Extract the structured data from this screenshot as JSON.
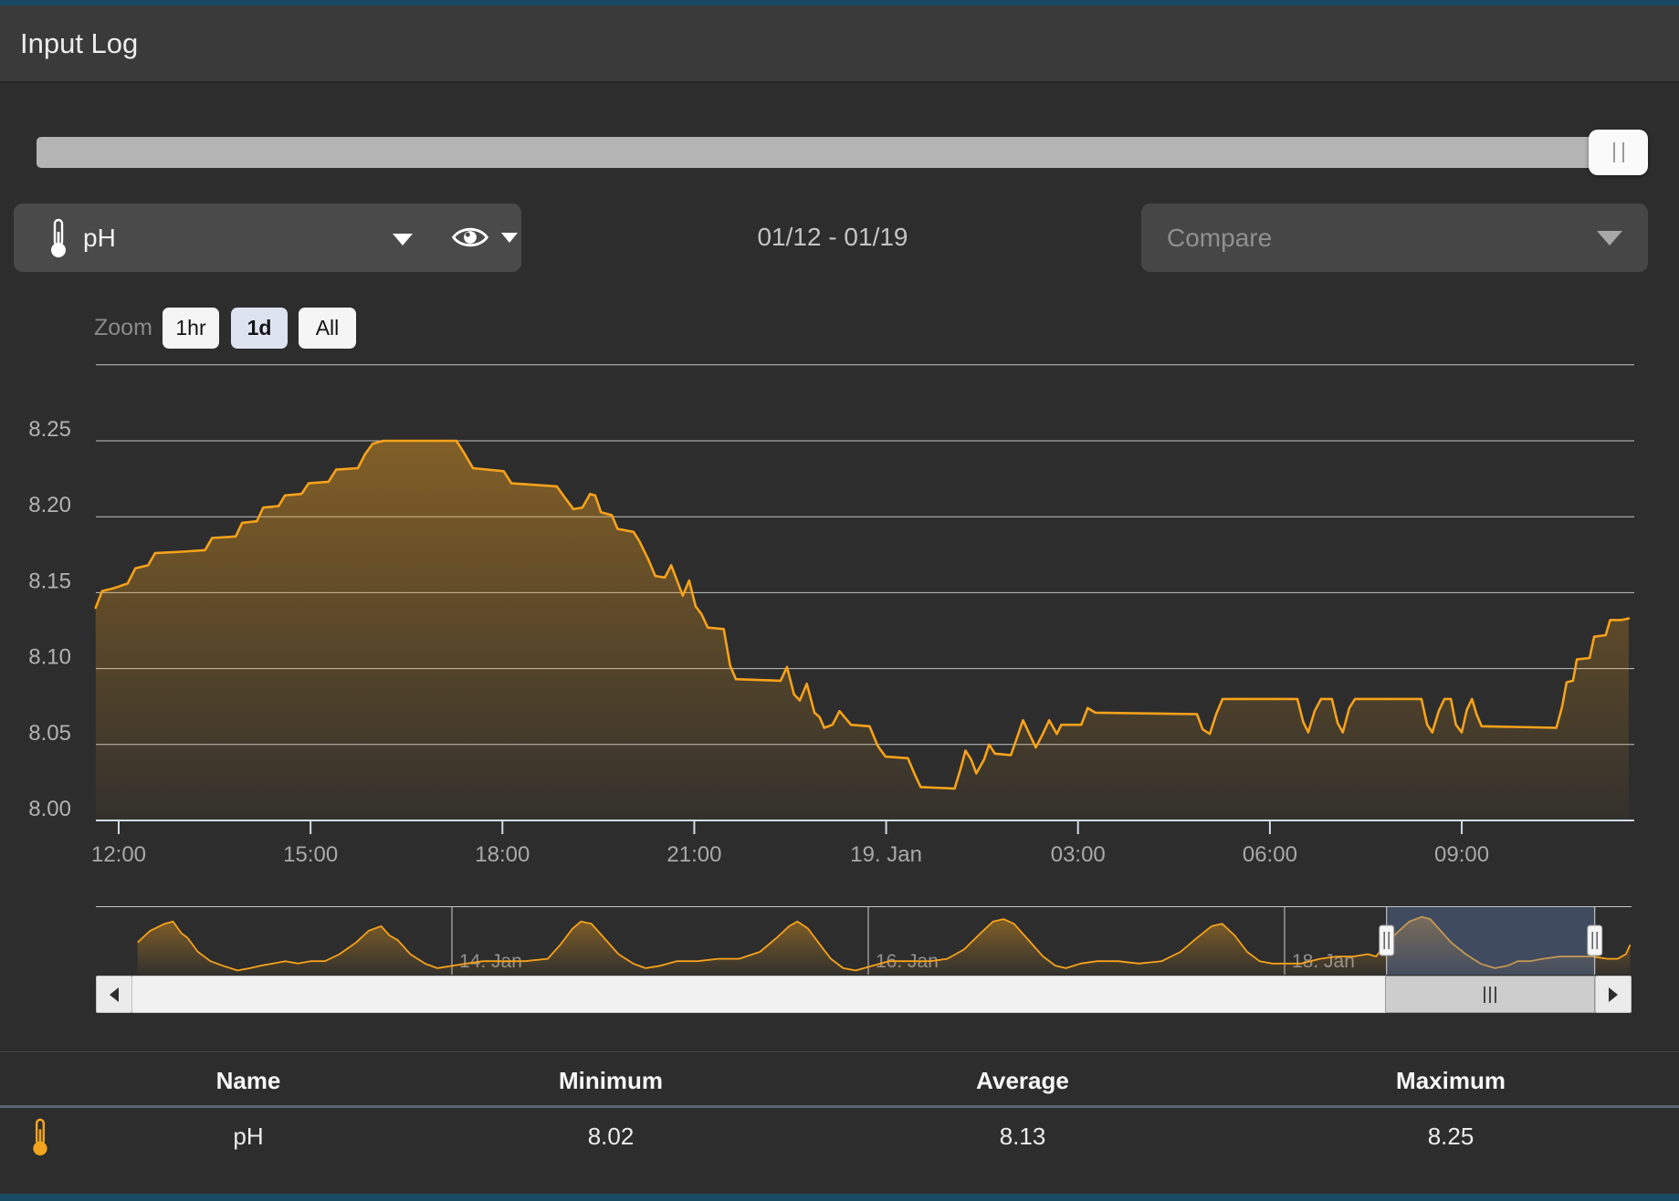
{
  "window": {
    "title": "Input Log"
  },
  "toolbar": {
    "sensor_selector": {
      "label": "pH",
      "icon": "thermometer-icon"
    },
    "date_range": "01/12 - 01/19",
    "compare": {
      "placeholder": "Compare"
    }
  },
  "zoom_controls": {
    "label": "Zoom",
    "options": [
      {
        "label": "1hr",
        "active": false
      },
      {
        "label": "1d",
        "active": true
      },
      {
        "label": "All",
        "active": false
      }
    ]
  },
  "chart_data": {
    "type": "area",
    "title": "pH input log, last 24 hours",
    "legend_position": "none",
    "grid": true,
    "colors": {
      "line": "#f7a21b",
      "fill_top": "rgba(246,163,30,0.5)",
      "fill_bottom": "rgba(246,163,30,0.03)",
      "selection": "rgba(99,132,190,0.35)",
      "axis": "#cfdce8"
    },
    "yAxis": {
      "min": 8.0,
      "max": 8.3,
      "gridlines": [
        8.0,
        8.05,
        8.1,
        8.15,
        8.2,
        8.25,
        8.3
      ],
      "labels": [
        "8.00",
        "8.05",
        "8.10",
        "8.15",
        "8.20",
        "8.25"
      ]
    },
    "xAxis": {
      "unit": "hours since 18 Jan 12:00",
      "tick_hours": [
        0,
        3,
        6,
        9,
        12,
        15,
        18,
        21
      ],
      "tick_labels": [
        "12:00",
        "15:00",
        "18:00",
        "21:00",
        "19. Jan",
        "03:00",
        "06:00",
        "09:00"
      ]
    },
    "series": [
      {
        "name": "pH",
        "x_unit": "hours since 18 Jan 12:00",
        "points": [
          [
            -0.36,
            8.14
          ],
          [
            -0.26,
            8.151
          ],
          [
            -0.07,
            8.153
          ],
          [
            0.14,
            8.156
          ],
          [
            0.26,
            8.166
          ],
          [
            0.46,
            8.168
          ],
          [
            0.57,
            8.176
          ],
          [
            1.0,
            8.177
          ],
          [
            1.35,
            8.178
          ],
          [
            1.46,
            8.186
          ],
          [
            1.83,
            8.187
          ],
          [
            1.93,
            8.196
          ],
          [
            2.16,
            8.197
          ],
          [
            2.26,
            8.206
          ],
          [
            2.5,
            8.207
          ],
          [
            2.6,
            8.214
          ],
          [
            2.86,
            8.215
          ],
          [
            2.97,
            8.222
          ],
          [
            3.28,
            8.223
          ],
          [
            3.4,
            8.231
          ],
          [
            3.74,
            8.232
          ],
          [
            3.85,
            8.241
          ],
          [
            3.97,
            8.248
          ],
          [
            4.14,
            8.25
          ],
          [
            5.28,
            8.25
          ],
          [
            5.4,
            8.242
          ],
          [
            5.54,
            8.232
          ],
          [
            6.02,
            8.23
          ],
          [
            6.14,
            8.222
          ],
          [
            6.85,
            8.22
          ],
          [
            6.97,
            8.213
          ],
          [
            7.11,
            8.205
          ],
          [
            7.25,
            8.206
          ],
          [
            7.37,
            8.215
          ],
          [
            7.45,
            8.214
          ],
          [
            7.54,
            8.203
          ],
          [
            7.71,
            8.201
          ],
          [
            7.8,
            8.192
          ],
          [
            8.05,
            8.19
          ],
          [
            8.14,
            8.184
          ],
          [
            8.28,
            8.172
          ],
          [
            8.39,
            8.161
          ],
          [
            8.54,
            8.16
          ],
          [
            8.64,
            8.168
          ],
          [
            8.74,
            8.157
          ],
          [
            8.82,
            8.148
          ],
          [
            8.92,
            8.158
          ],
          [
            9.02,
            8.141
          ],
          [
            9.11,
            8.136
          ],
          [
            9.21,
            8.127
          ],
          [
            9.46,
            8.126
          ],
          [
            9.56,
            8.102
          ],
          [
            9.65,
            8.093
          ],
          [
            10.35,
            8.092
          ],
          [
            10.45,
            8.101
          ],
          [
            10.56,
            8.083
          ],
          [
            10.65,
            8.079
          ],
          [
            10.76,
            8.09
          ],
          [
            10.88,
            8.071
          ],
          [
            10.96,
            8.068
          ],
          [
            11.03,
            8.061
          ],
          [
            11.16,
            8.063
          ],
          [
            11.27,
            8.072
          ],
          [
            11.45,
            8.063
          ],
          [
            11.74,
            8.062
          ],
          [
            11.87,
            8.049
          ],
          [
            11.99,
            8.042
          ],
          [
            12.34,
            8.041
          ],
          [
            12.44,
            8.031
          ],
          [
            12.54,
            8.022
          ],
          [
            13.07,
            8.021
          ],
          [
            13.17,
            8.035
          ],
          [
            13.24,
            8.046
          ],
          [
            13.33,
            8.04
          ],
          [
            13.41,
            8.031
          ],
          [
            13.53,
            8.04
          ],
          [
            13.61,
            8.05
          ],
          [
            13.7,
            8.044
          ],
          [
            13.95,
            8.043
          ],
          [
            14.05,
            8.055
          ],
          [
            14.14,
            8.066
          ],
          [
            14.24,
            8.057
          ],
          [
            14.34,
            8.048
          ],
          [
            14.45,
            8.057
          ],
          [
            14.55,
            8.066
          ],
          [
            14.67,
            8.057
          ],
          [
            14.74,
            8.063
          ],
          [
            15.05,
            8.063
          ],
          [
            15.15,
            8.074
          ],
          [
            15.27,
            8.071
          ],
          [
            16.86,
            8.07
          ],
          [
            16.95,
            8.06
          ],
          [
            17.06,
            8.057
          ],
          [
            17.16,
            8.07
          ],
          [
            17.26,
            8.08
          ],
          [
            18.43,
            8.08
          ],
          [
            18.52,
            8.065
          ],
          [
            18.6,
            8.058
          ],
          [
            18.7,
            8.072
          ],
          [
            18.8,
            8.08
          ],
          [
            18.97,
            8.08
          ],
          [
            19.06,
            8.064
          ],
          [
            19.14,
            8.058
          ],
          [
            19.24,
            8.074
          ],
          [
            19.33,
            8.08
          ],
          [
            20.37,
            8.08
          ],
          [
            20.46,
            8.063
          ],
          [
            20.54,
            8.058
          ],
          [
            20.64,
            8.072
          ],
          [
            20.73,
            8.08
          ],
          [
            20.83,
            8.08
          ],
          [
            20.91,
            8.063
          ],
          [
            21.0,
            8.058
          ],
          [
            21.08,
            8.073
          ],
          [
            21.16,
            8.08
          ],
          [
            21.23,
            8.07
          ],
          [
            21.31,
            8.062
          ],
          [
            22.48,
            8.061
          ],
          [
            22.57,
            8.075
          ],
          [
            22.64,
            8.091
          ],
          [
            22.74,
            8.092
          ],
          [
            22.8,
            8.106
          ],
          [
            23.0,
            8.107
          ],
          [
            23.07,
            8.121
          ],
          [
            23.25,
            8.122
          ],
          [
            23.32,
            8.132
          ],
          [
            23.49,
            8.132
          ],
          [
            23.61,
            8.133
          ]
        ]
      }
    ],
    "navigator": {
      "x_unit": "days since 12 Jan 00:00",
      "gridline_days": [
        2,
        4,
        6
      ],
      "gridline_labels": [
        "14. Jan",
        "16. Jan",
        "18. Jan"
      ],
      "selection_days": [
        6.49,
        7.49
      ],
      "points": [
        [
          0.49,
          8.13
        ],
        [
          0.55,
          8.18
        ],
        [
          0.62,
          8.21
        ],
        [
          0.66,
          8.22
        ],
        [
          0.7,
          8.17
        ],
        [
          0.73,
          8.15
        ],
        [
          0.78,
          8.09
        ],
        [
          0.84,
          8.05
        ],
        [
          0.9,
          8.03
        ],
        [
          0.97,
          8.01
        ],
        [
          1.03,
          8.02
        ],
        [
          1.08,
          8.03
        ],
        [
          1.14,
          8.04
        ],
        [
          1.2,
          8.05
        ],
        [
          1.26,
          8.04
        ],
        [
          1.32,
          8.05
        ],
        [
          1.39,
          8.05
        ],
        [
          1.46,
          8.08
        ],
        [
          1.54,
          8.13
        ],
        [
          1.6,
          8.18
        ],
        [
          1.66,
          8.2
        ],
        [
          1.7,
          8.16
        ],
        [
          1.74,
          8.14
        ],
        [
          1.8,
          8.08
        ],
        [
          1.87,
          8.04
        ],
        [
          1.93,
          8.02
        ],
        [
          2.0,
          8.03
        ],
        [
          2.07,
          8.04
        ],
        [
          2.15,
          8.05
        ],
        [
          2.25,
          8.05
        ],
        [
          2.35,
          8.05
        ],
        [
          2.46,
          8.06
        ],
        [
          2.52,
          8.12
        ],
        [
          2.58,
          8.19
        ],
        [
          2.62,
          8.22
        ],
        [
          2.67,
          8.21
        ],
        [
          2.72,
          8.16
        ],
        [
          2.8,
          8.08
        ],
        [
          2.87,
          8.04
        ],
        [
          2.93,
          8.02
        ],
        [
          3.0,
          8.03
        ],
        [
          3.08,
          8.05
        ],
        [
          3.18,
          8.05
        ],
        [
          3.28,
          8.06
        ],
        [
          3.38,
          8.06
        ],
        [
          3.48,
          8.09
        ],
        [
          3.56,
          8.15
        ],
        [
          3.62,
          8.2
        ],
        [
          3.66,
          8.22
        ],
        [
          3.71,
          8.19
        ],
        [
          3.76,
          8.13
        ],
        [
          3.82,
          8.06
        ],
        [
          3.88,
          8.02
        ],
        [
          3.94,
          8.01
        ],
        [
          4.02,
          8.03
        ],
        [
          4.1,
          8.05
        ],
        [
          4.2,
          8.05
        ],
        [
          4.3,
          8.05
        ],
        [
          4.38,
          8.06
        ],
        [
          4.46,
          8.1
        ],
        [
          4.54,
          8.17
        ],
        [
          4.6,
          8.22
        ],
        [
          4.65,
          8.23
        ],
        [
          4.7,
          8.21
        ],
        [
          4.76,
          8.15
        ],
        [
          4.84,
          8.07
        ],
        [
          4.9,
          8.03
        ],
        [
          4.95,
          8.02
        ],
        [
          5.02,
          8.04
        ],
        [
          5.1,
          8.05
        ],
        [
          5.2,
          8.05
        ],
        [
          5.3,
          8.04
        ],
        [
          5.41,
          8.05
        ],
        [
          5.5,
          8.09
        ],
        [
          5.58,
          8.15
        ],
        [
          5.65,
          8.2
        ],
        [
          5.7,
          8.21
        ],
        [
          5.76,
          8.16
        ],
        [
          5.82,
          8.09
        ],
        [
          5.88,
          8.05
        ],
        [
          5.94,
          8.04
        ],
        [
          6.0,
          8.04
        ],
        [
          6.08,
          8.04
        ],
        [
          6.17,
          8.06
        ],
        [
          6.25,
          8.07
        ],
        [
          6.33,
          8.07
        ],
        [
          6.4,
          8.08
        ],
        [
          6.44,
          8.07
        ],
        [
          6.49,
          8.13
        ],
        [
          6.55,
          8.18
        ],
        [
          6.6,
          8.22
        ],
        [
          6.66,
          8.24
        ],
        [
          6.7,
          8.23
        ],
        [
          6.74,
          8.19
        ],
        [
          6.8,
          8.13
        ],
        [
          6.87,
          8.08
        ],
        [
          6.94,
          8.04
        ],
        [
          7.01,
          8.02
        ],
        [
          7.07,
          8.03
        ],
        [
          7.12,
          8.05
        ],
        [
          7.18,
          8.05
        ],
        [
          7.24,
          8.06
        ],
        [
          7.32,
          8.07
        ],
        [
          7.4,
          8.07
        ],
        [
          7.48,
          8.07
        ],
        [
          7.55,
          8.06
        ],
        [
          7.6,
          8.06
        ],
        [
          7.64,
          8.08
        ],
        [
          7.66,
          8.12
        ]
      ]
    },
    "summary": {
      "minimum": 8.02,
      "average": 8.13,
      "maximum": 8.25
    }
  },
  "table": {
    "columns": [
      "Name",
      "Minimum",
      "Average",
      "Maximum"
    ],
    "rows": [
      {
        "icon": "thermometer-icon",
        "name": "pH",
        "minimum": "8.02",
        "average": "8.13",
        "maximum": "8.25"
      }
    ]
  }
}
